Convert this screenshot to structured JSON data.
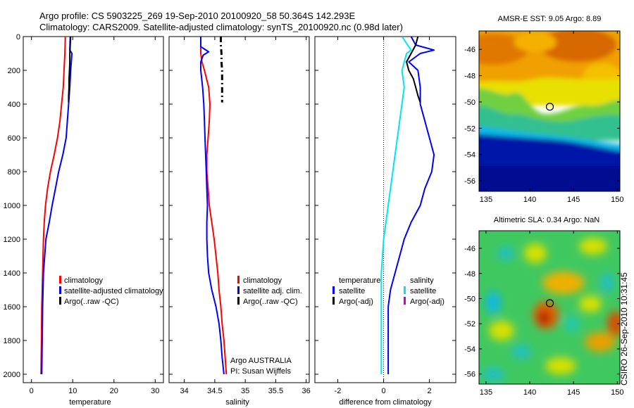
{
  "header": {
    "line1": "Argo profile: CS 5903225_269 19-Sep-2010 20100920_58 50.364S 142.293E",
    "line2": "Climatology: CARS2009. Satellite-adjusted climatology: synTS_20100920.nc (0.98d later)"
  },
  "credit": "CSIRO 26-Sep-2010 10:31:45",
  "colors": {
    "climatology": "#ff0000",
    "satellite": "#0000ff",
    "argo": "#000000",
    "salinity_satellite": "#00e5ee",
    "argo_adj_salinity": "#cc00cc"
  },
  "chart_data": [
    {
      "type": "line",
      "panel": "temperature",
      "xlabel": "temperature",
      "xlim": [
        -2,
        32
      ],
      "ylim": [
        0,
        2050
      ],
      "y_reversed": true,
      "xticks": [
        "0",
        "10",
        "20",
        "30"
      ],
      "yticks": [
        "0",
        "200",
        "400",
        "600",
        "800",
        "1000",
        "1200",
        "1400",
        "1600",
        "1800",
        "2000"
      ],
      "legend": [
        "climatology",
        "satellite-adjusted climatology",
        "Argo(..raw -QC)"
      ],
      "series": [
        {
          "name": "climatology",
          "color": "#ff0000",
          "depth": [
            0,
            100,
            200,
            300,
            400,
            500,
            600,
            700,
            800,
            900,
            1000,
            1100,
            1200,
            1400,
            1600,
            1800,
            2000
          ],
          "values": [
            8.2,
            8.1,
            7.9,
            7.7,
            7.3,
            6.9,
            6.3,
            5.5,
            4.6,
            3.9,
            3.4,
            3.1,
            2.9,
            2.7,
            2.5,
            2.4,
            2.3
          ]
        },
        {
          "name": "satellite-adjusted climatology",
          "color": "#0000ff",
          "depth": [
            0,
            80,
            100,
            200,
            300,
            400,
            500,
            600,
            700,
            800,
            900,
            1000,
            1100,
            1200,
            1400,
            1600,
            1800,
            2000
          ],
          "values": [
            9.4,
            9.3,
            9.8,
            9.5,
            9.3,
            9.0,
            8.7,
            8.4,
            7.6,
            6.6,
            5.8,
            5.0,
            4.3,
            3.5,
            2.9,
            2.7,
            2.6,
            2.5
          ]
        },
        {
          "name": "Argo(..raw -QC)",
          "color": "#000000",
          "depth": [
            0,
            50,
            100,
            150,
            200,
            250,
            300,
            350,
            390
          ],
          "values": [
            9.5,
            9.4,
            9.3,
            9.3,
            9.2,
            9.1,
            9.1,
            9.0,
            9.0
          ]
        }
      ]
    },
    {
      "type": "line",
      "panel": "salinity",
      "xlabel": "salinity",
      "xlim": [
        33.75,
        36.05
      ],
      "ylim": [
        0,
        2050
      ],
      "y_reversed": true,
      "xticks": [
        "34",
        "34.5",
        "35",
        "35.5",
        "36"
      ],
      "legend": [
        "climatology",
        "satellite adj. clim.",
        "Argo(..raw -QC)"
      ],
      "annotation": [
        "Argo AUSTRALIA",
        "PI: Susan Wijffels"
      ],
      "series": [
        {
          "name": "climatology",
          "color": "#ff0000",
          "depth": [
            0,
            100,
            150,
            200,
            300,
            400,
            500,
            600,
            700,
            800,
            900,
            1000,
            1100,
            1200,
            1300,
            1400,
            1500,
            1600,
            1700,
            1800,
            1900,
            2000
          ],
          "values": [
            34.27,
            34.27,
            34.29,
            34.33,
            34.4,
            34.42,
            34.41,
            34.39,
            34.37,
            34.37,
            34.39,
            34.41,
            34.45,
            34.49,
            34.52,
            34.55,
            34.57,
            34.6,
            34.62,
            34.65,
            34.67,
            34.69
          ]
        },
        {
          "name": "satellite adj. clim.",
          "color": "#0000ff",
          "depth": [
            0,
            60,
            90,
            110,
            150,
            200,
            300,
            400,
            500,
            600,
            700,
            800,
            900,
            1000,
            1100,
            1200,
            1300,
            1400,
            1500,
            1600,
            1700,
            1800,
            1900,
            2000
          ],
          "values": [
            34.27,
            34.27,
            34.4,
            34.31,
            34.27,
            34.27,
            34.3,
            34.32,
            34.33,
            34.34,
            34.35,
            34.36,
            34.37,
            34.38,
            34.37,
            34.37,
            34.38,
            34.4,
            34.45,
            34.52,
            34.57,
            34.6,
            34.62,
            34.65
          ]
        },
        {
          "name": "Argo(..raw -QC)",
          "color": "#000000",
          "dashed": true,
          "depth": [
            0,
            50,
            100,
            150,
            200,
            250,
            300,
            350,
            390
          ],
          "values": [
            34.6,
            34.6,
            34.61,
            34.61,
            34.62,
            34.62,
            34.62,
            34.62,
            34.62
          ]
        }
      ]
    },
    {
      "type": "line",
      "panel": "difference",
      "xlabel": "difference from climatology",
      "xlim": [
        -3,
        3.15
      ],
      "ylim": [
        0,
        2050
      ],
      "y_reversed": true,
      "xticks": [
        "-2",
        "0",
        "2"
      ],
      "legend_temperature": {
        "title": "temperature",
        "items": [
          "satellite",
          "Argo(-adj)"
        ]
      },
      "legend_salinity": {
        "title": "salinity",
        "items": [
          "satellite",
          "Argo(-adj)"
        ]
      },
      "series": [
        {
          "name": "temperature satellite",
          "color": "#0000ff",
          "depth": [
            0,
            50,
            80,
            100,
            150,
            200,
            300,
            400,
            500,
            600,
            700,
            800,
            900,
            1000,
            1100,
            1200,
            1300,
            1400,
            1500,
            1600,
            1800,
            2000
          ],
          "values": [
            1.2,
            1.4,
            2.2,
            1.6,
            1.1,
            1.5,
            1.6,
            1.6,
            1.8,
            2.0,
            2.2,
            2.1,
            1.8,
            1.6,
            1.2,
            0.9,
            0.7,
            0.5,
            0.3,
            0.2,
            0.2,
            0.2
          ]
        },
        {
          "name": "temperature Argo(-adj)",
          "color": "#000000",
          "depth": [
            0,
            50,
            100,
            150,
            200,
            250,
            300,
            350,
            390
          ],
          "values": [
            1.5,
            1.4,
            1.2,
            1.0,
            1.1,
            1.3,
            1.4,
            1.5,
            1.6
          ]
        },
        {
          "name": "salinity satellite",
          "color": "#00e5ee",
          "depth": [
            0,
            80,
            100,
            200,
            300,
            400,
            500,
            600,
            700,
            800,
            900,
            1000,
            1200,
            1400,
            1600,
            1800,
            2000
          ],
          "values": [
            0.8,
            1.2,
            1.0,
            0.8,
            0.9,
            0.8,
            0.7,
            0.6,
            0.5,
            0.4,
            0.3,
            0.2,
            0.0,
            -0.1,
            -0.1,
            -0.1,
            -0.1
          ]
        }
      ]
    },
    {
      "type": "heatmap",
      "panel": "sst_map",
      "title": "AMSR-E SST: 9.05 Argo: 8.89",
      "xlim": [
        134.2,
        150.3
      ],
      "ylim": [
        -56.8,
        -44.6
      ],
      "xticks": [
        "135",
        "140",
        "145",
        "150"
      ],
      "yticks": [
        "-46",
        "-48",
        "-50",
        "-52",
        "-54",
        "-56"
      ],
      "marker": {
        "lon": 142.293,
        "lat": -50.364
      }
    },
    {
      "type": "heatmap",
      "panel": "sla_map",
      "title": "Altimetric SLA: 0.34 Argo: NaN",
      "xlim": [
        134.2,
        150.3
      ],
      "ylim": [
        -56.8,
        -44.6
      ],
      "xticks": [
        "135",
        "140",
        "145",
        "150"
      ],
      "yticks": [
        "-46",
        "-48",
        "-50",
        "-52",
        "-54",
        "-56"
      ],
      "marker": {
        "lon": 142.293,
        "lat": -50.364
      }
    }
  ]
}
